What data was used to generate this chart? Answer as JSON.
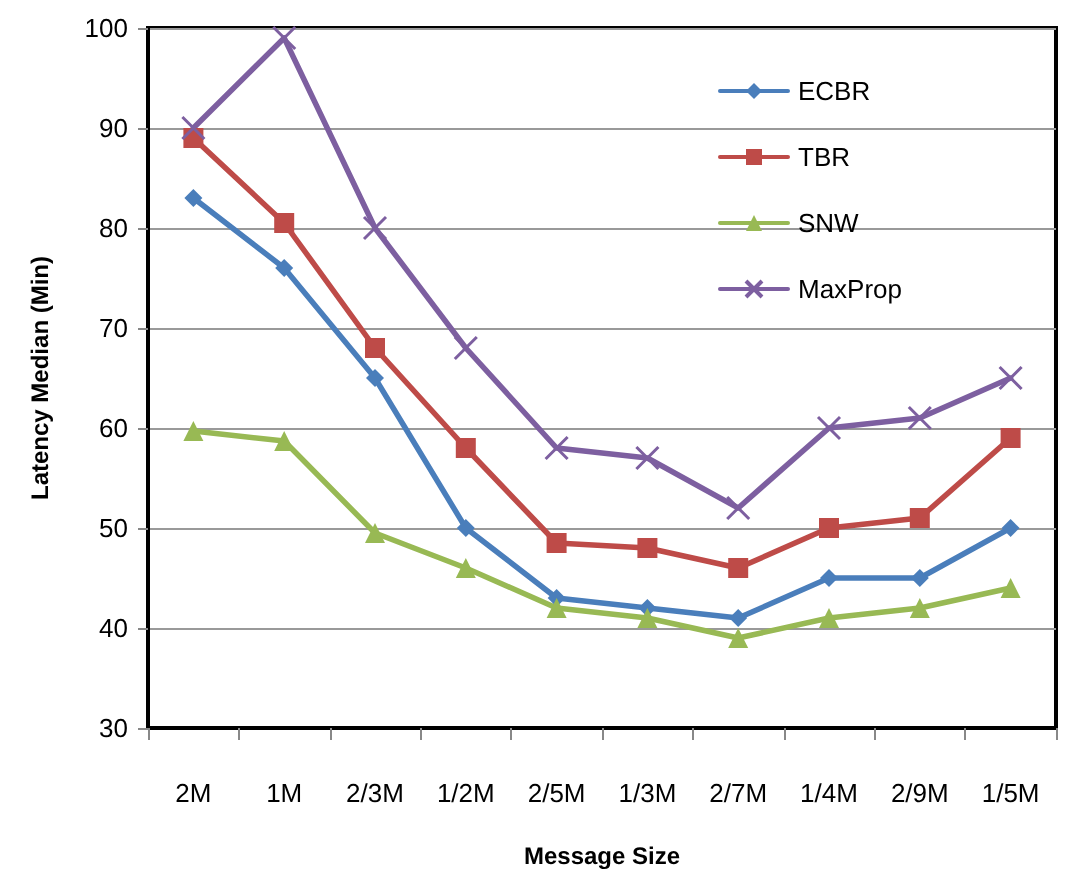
{
  "chart_data": {
    "type": "line",
    "xlabel": "Message Size",
    "ylabel": "Latency Median (Min)",
    "categories": [
      "2M",
      "1M",
      "2/3M",
      "1/2M",
      "2/5M",
      "1/3M",
      "2/7M",
      "1/4M",
      "2/9M",
      "1/5M"
    ],
    "series": [
      {
        "name": "ECBR",
        "color": "#4a7ebb",
        "marker": "diamond",
        "values": [
          83,
          76,
          65,
          50,
          43,
          42,
          41,
          45,
          45,
          50
        ]
      },
      {
        "name": "TBR",
        "color": "#be4b48",
        "marker": "square",
        "values": [
          89,
          80.5,
          68,
          58,
          48.5,
          48,
          46,
          50,
          51,
          59
        ]
      },
      {
        "name": "SNW",
        "color": "#98b954",
        "marker": "triangle",
        "values": [
          59.7,
          58.7,
          49.5,
          46,
          42,
          41,
          39,
          41,
          42,
          44
        ]
      },
      {
        "name": "MaxProp",
        "color": "#7d5fa0",
        "marker": "cross",
        "values": [
          90,
          99,
          80,
          68,
          58,
          57,
          52,
          60,
          61,
          65
        ]
      }
    ],
    "ylim": [
      30,
      100
    ],
    "yticks": [
      30,
      40,
      50,
      60,
      70,
      80,
      90,
      100
    ],
    "grid": "y",
    "legend": "top right",
    "line_style": "solid"
  }
}
